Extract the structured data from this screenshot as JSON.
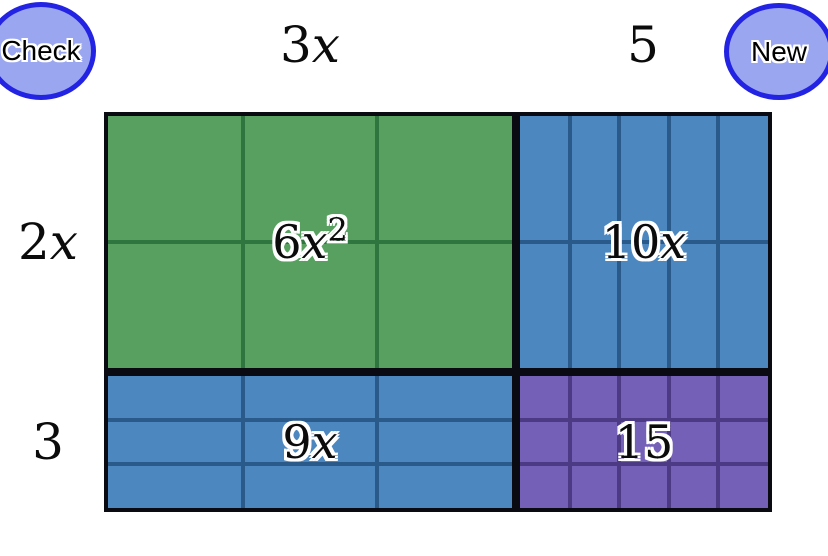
{
  "buttons": {
    "check_label": "Check",
    "new_label": "New"
  },
  "column_labels": [
    {
      "num": "3",
      "var": "x"
    },
    {
      "num": "5"
    }
  ],
  "row_labels": [
    {
      "num": "2",
      "var": "x"
    },
    {
      "num": "3"
    }
  ],
  "quadrants": [
    {
      "id": "6x2",
      "label": {
        "num": "6",
        "var": "x",
        "sup": "2"
      },
      "cols": 3,
      "rows": 2,
      "fill": "#57a05f",
      "line": "#2e7540"
    },
    {
      "id": "10x",
      "label": {
        "num": "10",
        "var": "x"
      },
      "cols": 5,
      "rows": 2,
      "fill": "#4c87c0",
      "line": "#2a5a8a"
    },
    {
      "id": "9x",
      "label": {
        "num": "9",
        "var": "x"
      },
      "cols": 3,
      "rows": 3,
      "fill": "#4c87c0",
      "line": "#2a5a8a"
    },
    {
      "id": "15",
      "label": {
        "num": "15"
      },
      "cols": 5,
      "rows": 3,
      "fill": "#7560b8",
      "line": "#4d3a85"
    }
  ],
  "palette": {
    "button_fill": "#9aa6f0",
    "button_border": "#2323e3",
    "grid_border": "#0a0a12",
    "background": "#ffffff"
  }
}
